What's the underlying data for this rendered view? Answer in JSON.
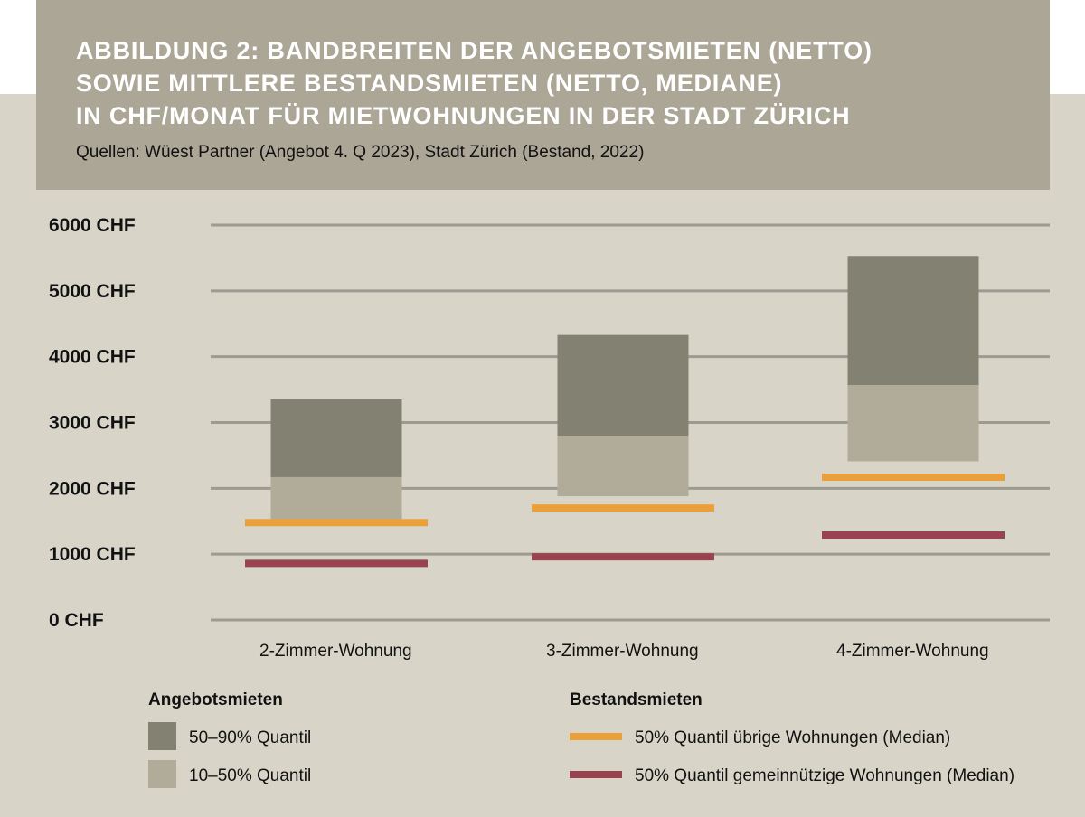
{
  "header": {
    "title_lines": [
      "ABBILDUNG 2: BANDBREITEN DER ANGEBOTSMIETEN (NETTO)",
      "SOWIE MITTLERE BESTANDSMIETEN (NETTO, MEDIANE)",
      "IN CHF/MONAT FÜR MIETWOHNUNGEN IN DER STADT ZÜRICH"
    ],
    "subtitle": "Quellen: Wüest Partner (Angebot 4. Q 2023), Stadt Zürich (Bestand, 2022)"
  },
  "chart_data": {
    "type": "bar",
    "categories": [
      "2-Zimmer-Wohnung",
      "3-Zimmer-Wohnung",
      "4-Zimmer-Wohnung"
    ],
    "y_ticks": [
      {
        "value": 0,
        "label": "0 CHF"
      },
      {
        "value": 1000,
        "label": "1000 CHF"
      },
      {
        "value": 2000,
        "label": "2000 CHF"
      },
      {
        "value": 3000,
        "label": "3000 CHF"
      },
      {
        "value": 4000,
        "label": "4000 CHF"
      },
      {
        "value": 5000,
        "label": "5000 CHF"
      },
      {
        "value": 6000,
        "label": "6000 CHF"
      }
    ],
    "ylim": [
      0,
      6000
    ],
    "grid": true,
    "ranges": [
      {
        "name": "10–50% Quantil",
        "color": "#b1ac99",
        "values": [
          [
            1520,
            2170
          ],
          [
            1880,
            2800
          ],
          [
            2410,
            3570
          ]
        ]
      },
      {
        "name": "50–90% Quantil",
        "color": "#838272",
        "values": [
          [
            2170,
            3350
          ],
          [
            2800,
            4330
          ],
          [
            3570,
            5530
          ]
        ]
      }
    ],
    "medians": [
      {
        "name": "50% Quantil übrige Wohnungen (Median)",
        "color": "#eaa03a",
        "values": [
          1480,
          1700,
          2170
        ]
      },
      {
        "name": "50% Quantil gemeinnützige Wohnungen (Median)",
        "color": "#9a4350",
        "values": [
          860,
          960,
          1290
        ]
      }
    ],
    "legend": {
      "groups": [
        {
          "title": "Angebotsmieten",
          "items": [
            {
              "label": "50–90% Quantil",
              "color": "#838272",
              "symbol": "square"
            },
            {
              "label": "10–50% Quantil",
              "color": "#b1ac99",
              "symbol": "square"
            }
          ]
        },
        {
          "title": "Bestandsmieten",
          "items": [
            {
              "label": "50% Quantil übrige Wohnungen (Median)",
              "color": "#eaa03a",
              "symbol": "line"
            },
            {
              "label": "50% Quantil gemeinnützige Wohnungen (Median)",
              "color": "#9a4350",
              "symbol": "line"
            }
          ]
        }
      ],
      "placement": "bottom"
    }
  }
}
